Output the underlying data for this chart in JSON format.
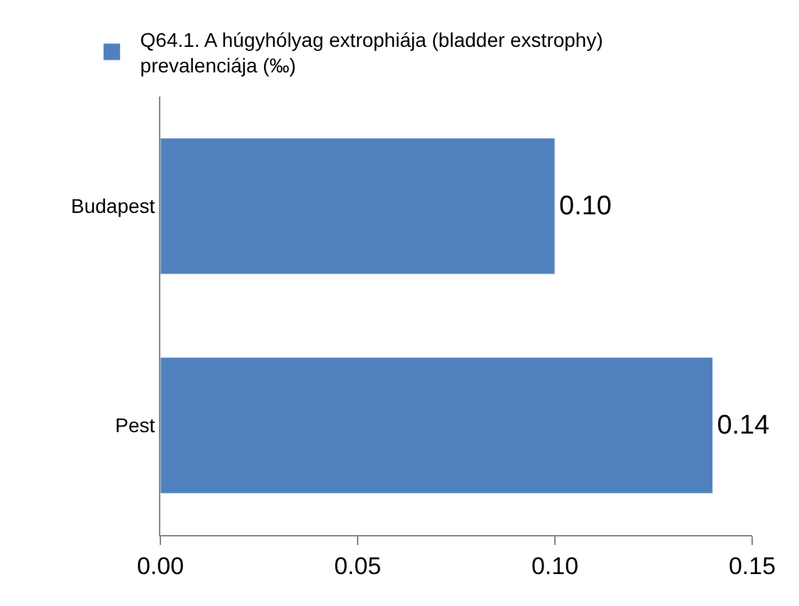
{
  "chart_data": {
    "type": "bar",
    "orientation": "horizontal",
    "categories": [
      "Budapest",
      "Pest"
    ],
    "series": [
      {
        "name": "Q64.1. A húgyhólyag extrophiája (bladder exstrophy) prevalenciája (‰)",
        "color": "#4f81bd",
        "values": [
          0.1,
          0.14
        ],
        "value_labels": [
          "0.10",
          "0.14"
        ]
      }
    ],
    "xlim": [
      0,
      0.15
    ],
    "xticks": [
      {
        "value": 0,
        "label": "0.00"
      },
      {
        "value": 0.05,
        "label": "0.05"
      },
      {
        "value": 0.1,
        "label": "0.10"
      },
      {
        "value": 0.15,
        "label": "0.15"
      }
    ],
    "legend": "top"
  }
}
